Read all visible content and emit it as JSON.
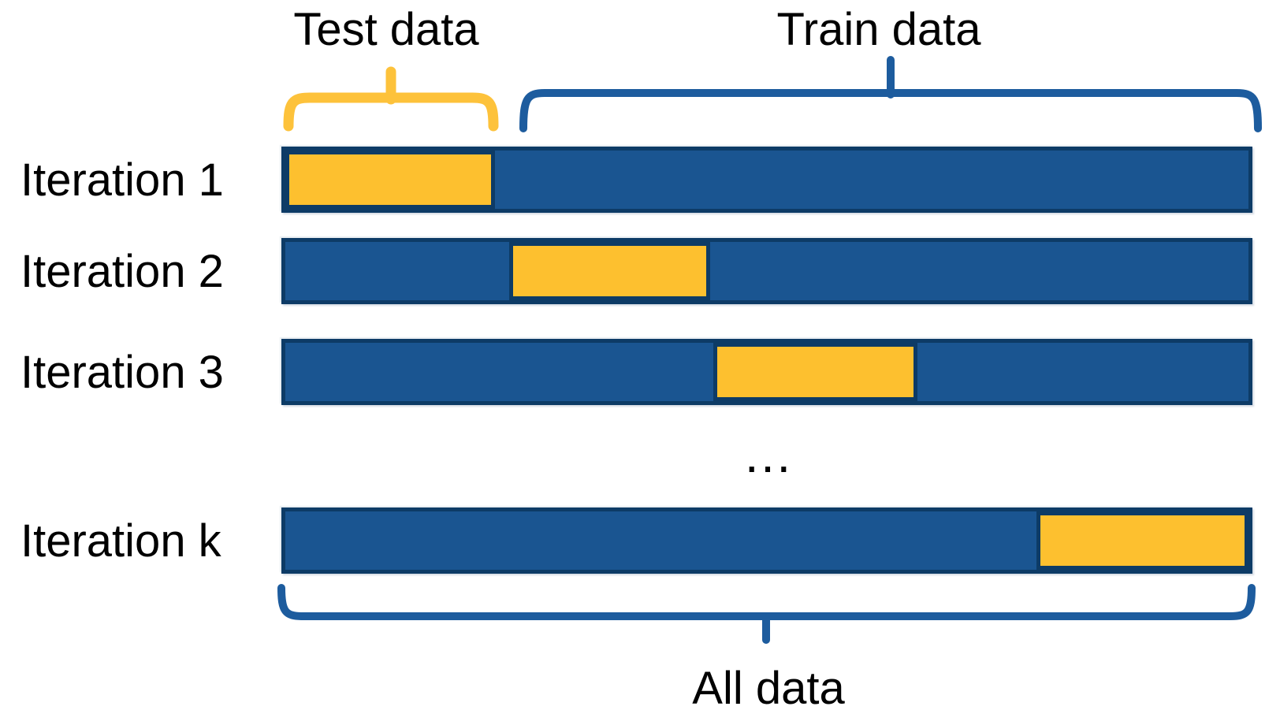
{
  "labels": {
    "test": "Test data",
    "train": "Train data",
    "all": "All data",
    "ellipsis": "…"
  },
  "rows": [
    {
      "label": "Iteration 1",
      "test_left_pct": 0,
      "test_width_pct": 21.8
    },
    {
      "label": "Iteration 2",
      "test_left_pct": 23.2,
      "test_width_pct": 20.9
    },
    {
      "label": "Iteration 3",
      "test_left_pct": 44.4,
      "test_width_pct": 21.2
    },
    {
      "label": "Iteration k",
      "test_left_pct": 78.0,
      "test_width_pct": 22.0
    }
  ],
  "colors": {
    "train_fill": "#1A5591",
    "bar_border": "#0D3B66",
    "test_fill": "#FDC02F",
    "test_brace": "#FDC23B",
    "train_brace": "#1D5C9E",
    "text": "#000000"
  }
}
